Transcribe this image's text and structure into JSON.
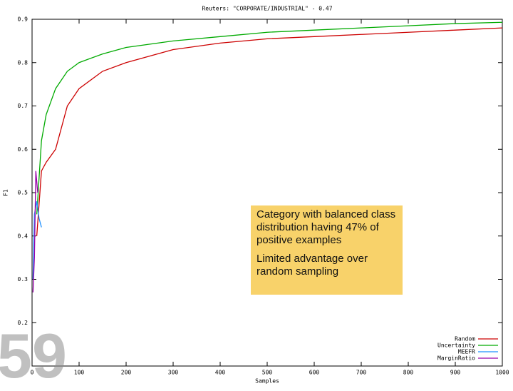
{
  "chart_data": {
    "type": "line",
    "title": "Reuters: \"CORPORATE/INDUSTRIAL\" - 0.47",
    "x_label": "Samples",
    "y_label": "F1",
    "xlim": [
      0,
      1000
    ],
    "xticks": [
      0,
      100,
      200,
      300,
      400,
      500,
      600,
      700,
      800,
      900,
      1000
    ],
    "ylim": [
      0.1,
      0.9
    ],
    "yticks": [
      0.2,
      0.3,
      0.4,
      0.5,
      0.6,
      0.7,
      0.8,
      0.9
    ],
    "legend": "bottom-right",
    "series": [
      {
        "name": "Random",
        "color": "#cc0000",
        "x": [
          10,
          20,
          30,
          50,
          75,
          100,
          150,
          200,
          300,
          400,
          500,
          600,
          700,
          800,
          900,
          1000
        ],
        "values": [
          0.4,
          0.55,
          0.57,
          0.6,
          0.7,
          0.74,
          0.78,
          0.8,
          0.83,
          0.845,
          0.855,
          0.86,
          0.865,
          0.87,
          0.875,
          0.88
        ]
      },
      {
        "name": "Uncertainty",
        "color": "#00aa00",
        "x": [
          10,
          20,
          30,
          50,
          75,
          100,
          150,
          200,
          300,
          400,
          500,
          600,
          700,
          800,
          900,
          1000
        ],
        "values": [
          0.45,
          0.62,
          0.68,
          0.74,
          0.78,
          0.8,
          0.82,
          0.835,
          0.85,
          0.86,
          0.87,
          0.875,
          0.88,
          0.885,
          0.89,
          0.893
        ]
      },
      {
        "name": "MEEFR",
        "color": "#1e90ff",
        "x": [
          2,
          5,
          10,
          15,
          20
        ],
        "values": [
          0.3,
          0.45,
          0.48,
          0.44,
          0.42
        ]
      },
      {
        "name": "MarginRatio",
        "color": "#9900aa",
        "x": [
          2,
          5,
          8,
          12
        ],
        "values": [
          0.27,
          0.35,
          0.55,
          0.5
        ]
      }
    ],
    "annotations": [
      "Category with balanced class distribution having 47% of positive examples",
      "Limited advantage over random sampling"
    ]
  },
  "slide_number": "59"
}
